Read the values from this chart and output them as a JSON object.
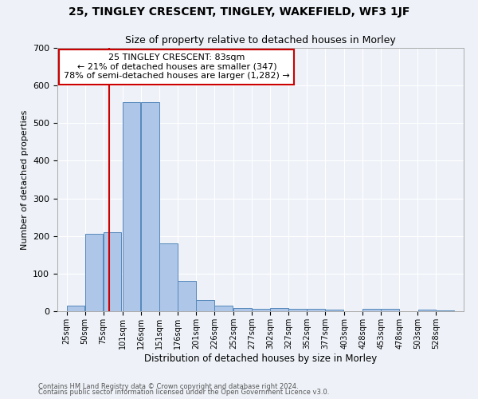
{
  "title": "25, TINGLEY CRESCENT, TINGLEY, WAKEFIELD, WF3 1JF",
  "subtitle": "Size of property relative to detached houses in Morley",
  "xlabel": "Distribution of detached houses by size in Morley",
  "ylabel": "Number of detached properties",
  "bar_values": [
    15,
    205,
    210,
    555,
    555,
    180,
    80,
    30,
    15,
    8,
    7,
    8,
    7,
    7,
    5,
    0,
    7,
    7,
    0,
    5,
    3
  ],
  "bin_starts": [
    25,
    50,
    75,
    101,
    126,
    151,
    176,
    201,
    226,
    252,
    277,
    302,
    327,
    352,
    377,
    403,
    428,
    453,
    478,
    503,
    528
  ],
  "bin_width": 25,
  "tick_labels": [
    "25sqm",
    "50sqm",
    "75sqm",
    "101sqm",
    "126sqm",
    "151sqm",
    "176sqm",
    "201sqm",
    "226sqm",
    "252sqm",
    "277sqm",
    "302sqm",
    "327sqm",
    "352sqm",
    "377sqm",
    "403sqm",
    "428sqm",
    "453sqm",
    "478sqm",
    "503sqm",
    "528sqm"
  ],
  "bar_color": "#aec6e8",
  "bar_edge_color": "#5588bb",
  "vline_x": 83,
  "vline_color": "#cc0000",
  "annotation_text": "25 TINGLEY CRESCENT: 83sqm\n← 21% of detached houses are smaller (347)\n78% of semi-detached houses are larger (1,282) →",
  "annotation_box_color": "#ffffff",
  "annotation_box_edge": "#cc0000",
  "ylim": [
    0,
    700
  ],
  "yticks": [
    0,
    100,
    200,
    300,
    400,
    500,
    600,
    700
  ],
  "footnote1": "Contains HM Land Registry data © Crown copyright and database right 2024.",
  "footnote2": "Contains public sector information licensed under the Open Government Licence v3.0.",
  "background_color": "#eef2f8",
  "plot_bg_color": "#eef2f8",
  "grid_color": "#ffffff",
  "title_fontsize": 10,
  "subtitle_fontsize": 9
}
